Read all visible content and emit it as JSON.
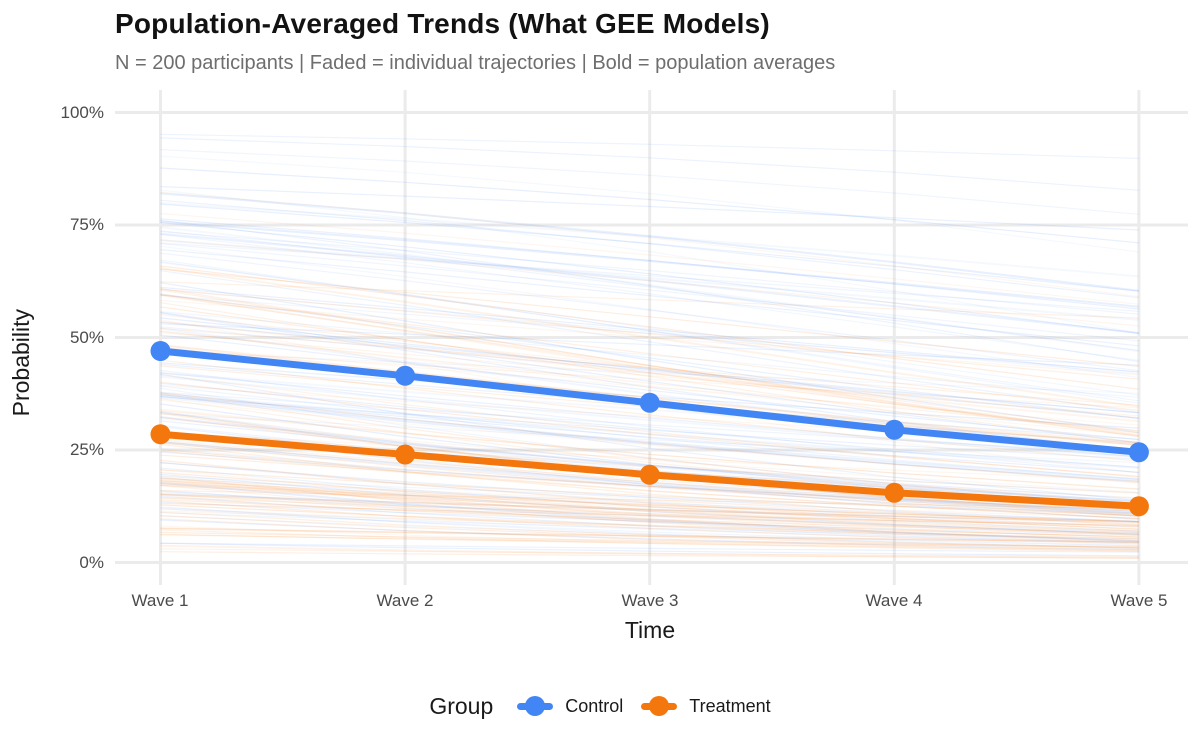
{
  "title": "Population-Averaged Trends (What GEE Models)",
  "subtitle": "N = 200 participants | Faded = individual trajectories | Bold = population averages",
  "axes": {
    "x_title": "Time",
    "y_title": "Probability",
    "x_ticks": [
      "Wave 1",
      "Wave 2",
      "Wave 3",
      "Wave 4",
      "Wave 5"
    ],
    "y_ticks": [
      "100%",
      "75%",
      "50%",
      "25%",
      "0%"
    ]
  },
  "legend": {
    "title": "Group",
    "items": [
      {
        "label": "Control",
        "color": "#4285F4"
      },
      {
        "label": "Treatment",
        "color": "#F4770D"
      }
    ]
  },
  "colors": {
    "control": "#4285F4",
    "treatment": "#F4770D",
    "grid": "#EBEBEB",
    "title_text": "#121212",
    "subtitle_text": "#6E6E6E",
    "tick_text": "#4B4B4B"
  },
  "chart_data": {
    "type": "line",
    "title": "Population-Averaged Trends (What GEE Models)",
    "subtitle": "N = 200 participants | Faded = individual trajectories | Bold = population averages",
    "xlabel": "Time",
    "ylabel": "Probability",
    "categories": [
      "Wave 1",
      "Wave 2",
      "Wave 3",
      "Wave 4",
      "Wave 5"
    ],
    "unit": "percent",
    "series": [
      {
        "name": "Control",
        "color": "#4285F4",
        "values": [
          47,
          41.5,
          35.5,
          29.5,
          24.5
        ]
      },
      {
        "name": "Treatment",
        "color": "#F4770D",
        "values": [
          28.5,
          24,
          19.5,
          15.5,
          12.5
        ]
      }
    ],
    "ylim": [
      0,
      100
    ],
    "y_tick_values": [
      0,
      25,
      50,
      75,
      100
    ],
    "grid": true,
    "legend_position": "bottom",
    "background_trajectories": {
      "description": "faded thin lines = individual participant trajectories",
      "n_total": 200,
      "n_per_group": 100
    }
  }
}
